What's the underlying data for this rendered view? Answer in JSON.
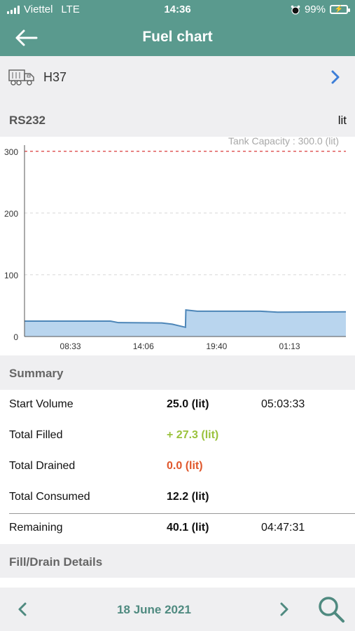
{
  "status_bar": {
    "carrier": "Viettel",
    "network": "LTE",
    "time": "14:36",
    "battery": "99%"
  },
  "header": {
    "title": "Fuel chart"
  },
  "vehicle": {
    "name": "H37"
  },
  "sensor": {
    "label": "RS232",
    "unit": "lit"
  },
  "chart_data": {
    "type": "area",
    "annotation": "Tank Capacity : 300.0 (lit)",
    "capacity_line": 300,
    "ylim": [
      0,
      310
    ],
    "y_ticks": [
      0,
      100,
      200,
      300
    ],
    "x_tick_labels": [
      "08:33",
      "14:06",
      "19:40",
      "01:13"
    ],
    "x_range_hours": [
      5.06,
      29.5
    ],
    "x_ticks_hours": [
      8.55,
      14.1,
      19.667,
      25.217
    ],
    "points": [
      {
        "x": 5.06,
        "y": 25
      },
      {
        "x": 11.6,
        "y": 25
      },
      {
        "x": 12.2,
        "y": 22.5
      },
      {
        "x": 15.5,
        "y": 22
      },
      {
        "x": 16.3,
        "y": 20
      },
      {
        "x": 17.3,
        "y": 15
      },
      {
        "x": 17.33,
        "y": 43
      },
      {
        "x": 18.2,
        "y": 41
      },
      {
        "x": 23.0,
        "y": 41
      },
      {
        "x": 24.3,
        "y": 39.5
      },
      {
        "x": 29.5,
        "y": 40
      }
    ],
    "colors": {
      "fill": "#b9d5ee",
      "line": "#4d86b8",
      "capacity": "#e05a5a"
    }
  },
  "summary": {
    "title": "Summary",
    "rows": [
      {
        "label": "Start Volume",
        "value": "25.0 (lit)",
        "time": "05:03:33",
        "color": "#111111"
      },
      {
        "label": "Total Filled",
        "value": "+ 27.3 (lit)",
        "time": "",
        "color": "#9ac23c"
      },
      {
        "label": "Total Drained",
        "value": "0.0 (lit)",
        "time": "",
        "color": "#e0572b"
      },
      {
        "label": "Total Consumed",
        "value": "12.2 (lit)",
        "time": "",
        "color": "#111111"
      },
      {
        "label": "Remaining",
        "value": "40.1 (lit)",
        "time": "04:47:31",
        "color": "#111111"
      }
    ]
  },
  "fill_drain": {
    "title": "Fill/Drain Details"
  },
  "footer": {
    "date": "18 June 2021"
  }
}
